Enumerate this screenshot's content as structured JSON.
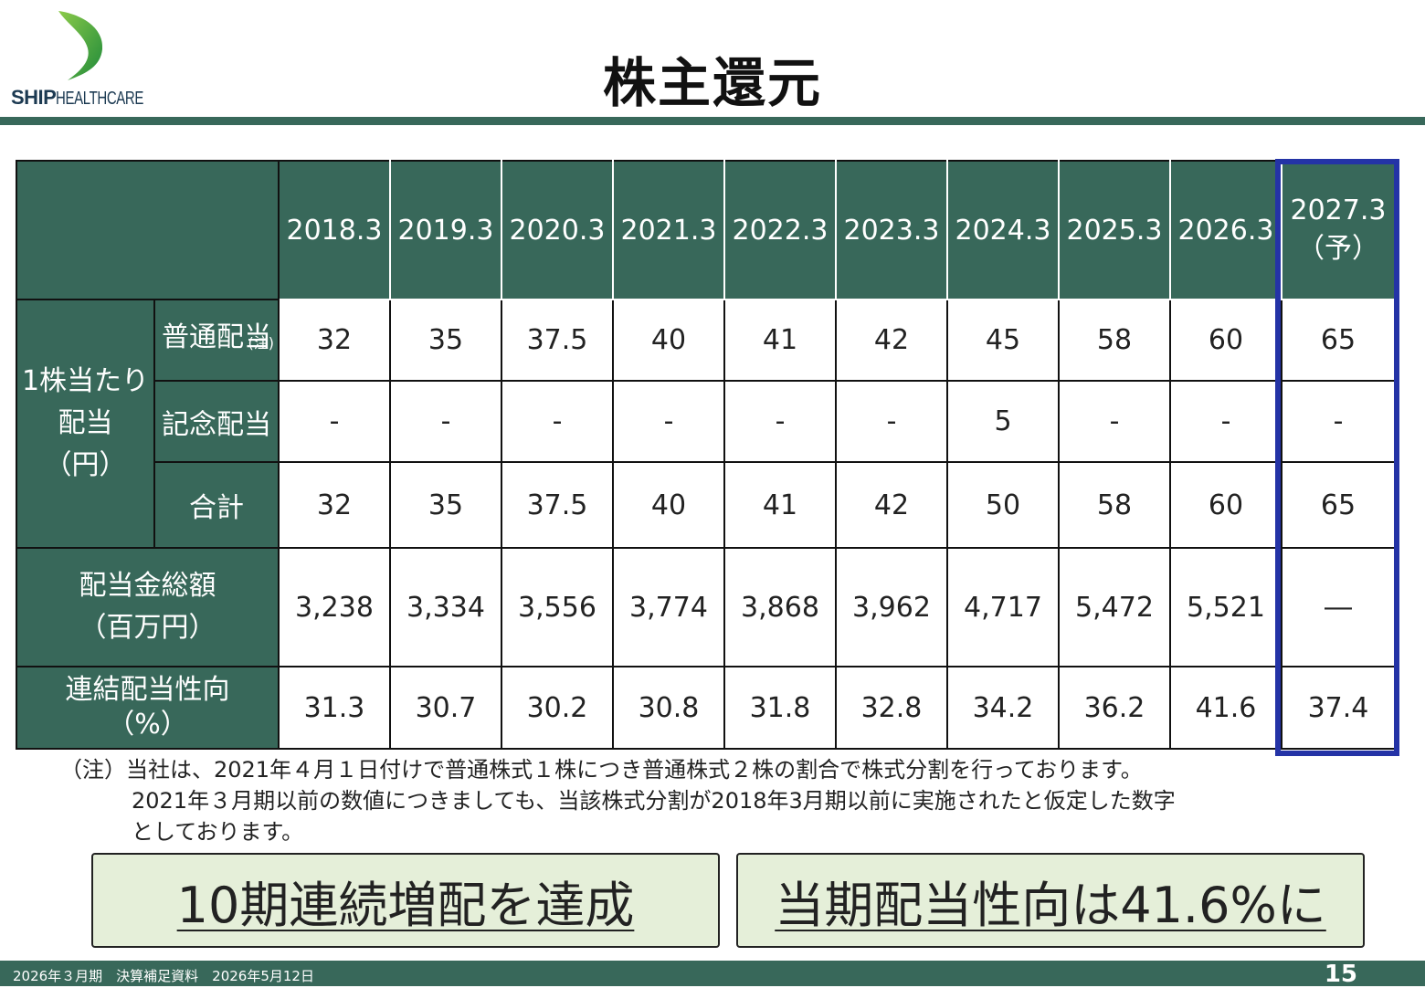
{
  "logo": {
    "brand_bold": "SHIP",
    "brand_light": "HEALTHCARE",
    "colors": {
      "green": "#2e9a3e",
      "light_green": "#8ccb4a"
    }
  },
  "title": "株主還元",
  "table": {
    "years": [
      "2018.3",
      "2019.3",
      "2020.3",
      "2021.3",
      "2022.3",
      "2023.3",
      "2024.3",
      "2025.3",
      "2026.3"
    ],
    "forecast_year": "2027.3",
    "forecast_tag": "（予）",
    "group_label_line1": "1株当たり",
    "group_label_line2": "配当",
    "group_label_line3": "（円）",
    "rows": {
      "ordinary": {
        "label": "普通配当",
        "note": "(注)",
        "values": [
          "32",
          "35",
          "37.5",
          "40",
          "41",
          "42",
          "45",
          "58",
          "60",
          "65"
        ]
      },
      "commemorative": {
        "label": "記念配当",
        "values": [
          "-",
          "-",
          "-",
          "-",
          "-",
          "-",
          "5",
          "-",
          "-",
          "-"
        ]
      },
      "total": {
        "label": "合計",
        "values": [
          "32",
          "35",
          "37.5",
          "40",
          "41",
          "42",
          "50",
          "58",
          "60",
          "65"
        ]
      },
      "dividend_total": {
        "label_line1": "配当金総額",
        "label_line2": "（百万円）",
        "values": [
          "3,238",
          "3,334",
          "3,556",
          "3,774",
          "3,868",
          "3,962",
          "4,717",
          "5,472",
          "5,521",
          "―"
        ]
      },
      "payout": {
        "label_line1": "連結配当性向",
        "label_line2": "（%）",
        "values": [
          "31.3",
          "30.7",
          "30.2",
          "30.8",
          "31.8",
          "32.8",
          "34.2",
          "36.2",
          "41.6",
          "37.4"
        ]
      }
    },
    "header_color": "#38685a",
    "highlight_color": "#2433a6"
  },
  "footnote": {
    "line1": "（注）当社は、2021年４月１日付けで普通株式１株につき普通株式２株の割合で株式分割を行っております。",
    "line2": "2021年３月期以前の数値につきましても、当該株式分割が2018年3月期以前に実施されたと仮定した数字",
    "line3": "としております。"
  },
  "callouts": {
    "left": "10期連続増配を達成",
    "right": "当期配当性向は41.6%に",
    "bg_color": "#e5efd9"
  },
  "footer": {
    "left": "2026年３月期　決算補足資料　2026年5月12日",
    "page": "15"
  }
}
